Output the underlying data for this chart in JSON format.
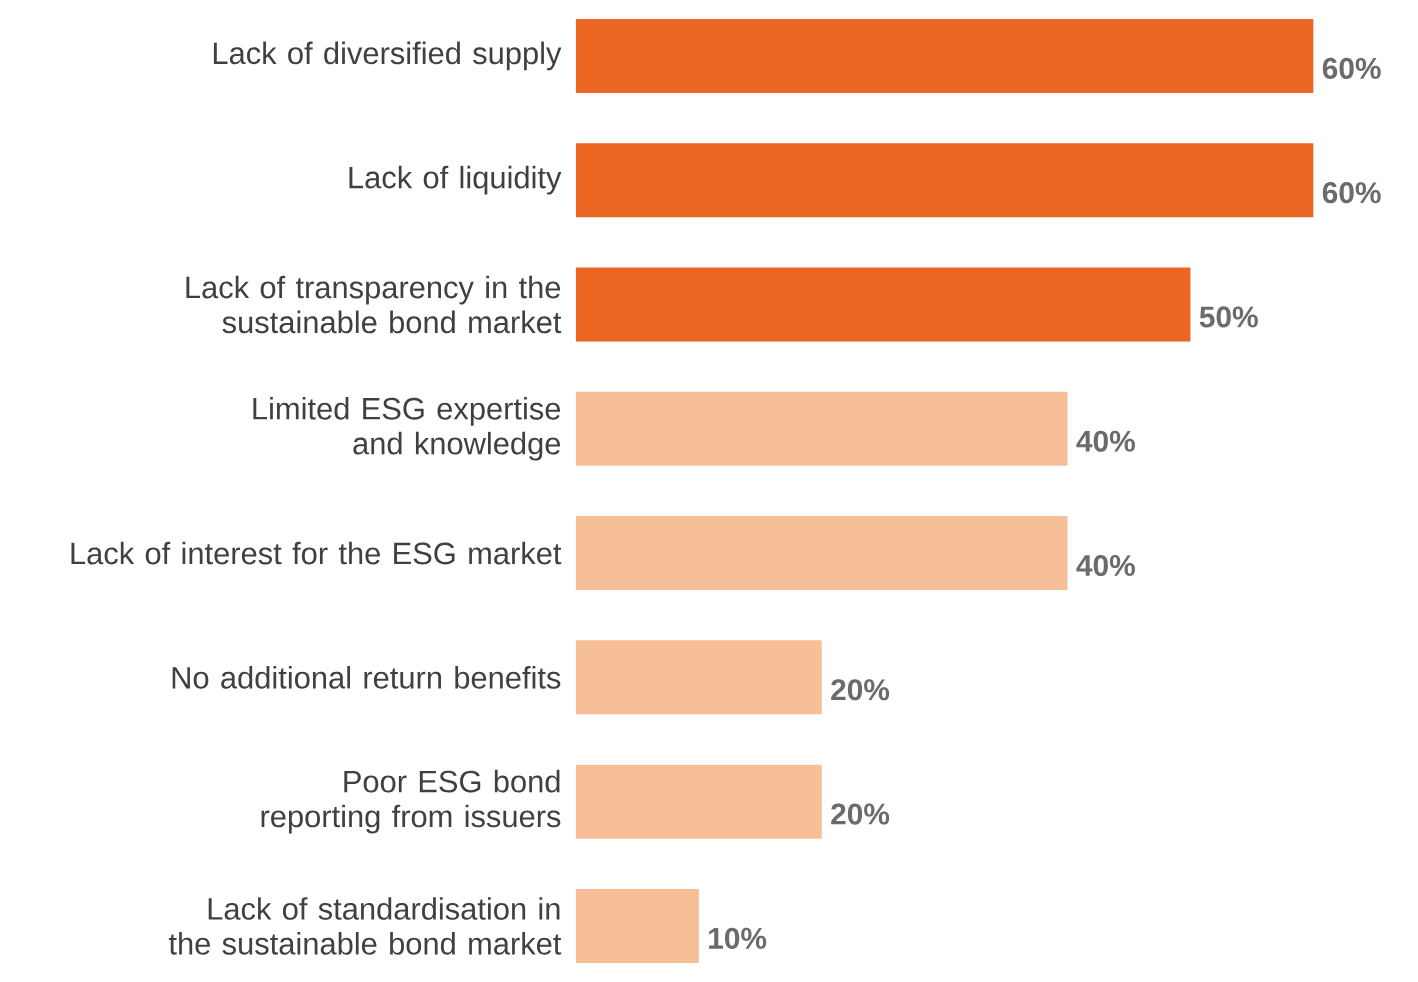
{
  "chart_data": {
    "type": "bar",
    "orientation": "horizontal",
    "categories": [
      "Lack of diversified supply",
      "Lack of liquidity",
      "Lack of transparency in the sustainable bond market",
      "Limited ESG expertise and knowledge",
      "Lack of interest for the ESG market",
      "No additional return benefits",
      "Poor ESG bond reporting from issuers",
      "Lack of standardisation in the sustainable bond market"
    ],
    "values": [
      60,
      60,
      50,
      40,
      40,
      20,
      20,
      10
    ],
    "value_labels": [
      "60%",
      "60%",
      "50%",
      "40%",
      "40%",
      "20%",
      "20%",
      "10%"
    ],
    "colors": [
      "#ec6623",
      "#ec6623",
      "#ec6623",
      "#f7bf98",
      "#f7bf98",
      "#f7bf98",
      "#f7bf98",
      "#f7bf98"
    ]
  }
}
